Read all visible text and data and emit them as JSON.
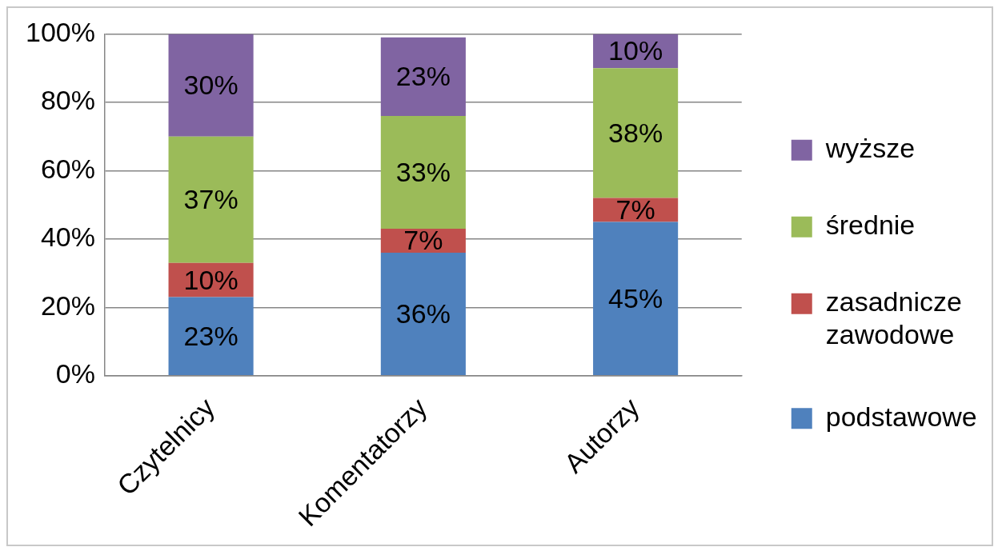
{
  "chart_data": {
    "type": "bar",
    "stacked": true,
    "categories": [
      "Czytelnicy",
      "Komentatorzy",
      "Autorzy"
    ],
    "series": [
      {
        "name": "podstawowe",
        "color": "#4f81bd",
        "values": [
          23,
          36,
          45
        ],
        "value_labels": [
          "23%",
          "36%",
          "45%"
        ]
      },
      {
        "name": "zasadnicze zawodowe",
        "color": "#c0504d",
        "values": [
          10,
          7,
          7
        ],
        "value_labels": [
          "10%",
          "7%",
          "7%"
        ]
      },
      {
        "name": "średnie",
        "color": "#9bbb59",
        "values": [
          37,
          33,
          38
        ],
        "value_labels": [
          "37%",
          "33%",
          "38%"
        ]
      },
      {
        "name": "wyższe",
        "color": "#8064a2",
        "values": [
          30,
          23,
          10
        ],
        "value_labels": [
          "30%",
          "23%",
          "10%"
        ]
      }
    ],
    "ylim": [
      0,
      100
    ],
    "yticks": [
      {
        "value": 0,
        "label": "0%"
      },
      {
        "value": 20,
        "label": "20%"
      },
      {
        "value": 40,
        "label": "40%"
      },
      {
        "value": 60,
        "label": "60%"
      },
      {
        "value": 80,
        "label": "80%"
      },
      {
        "value": 100,
        "label": "100%"
      }
    ],
    "grid": "y",
    "legend": "right"
  }
}
